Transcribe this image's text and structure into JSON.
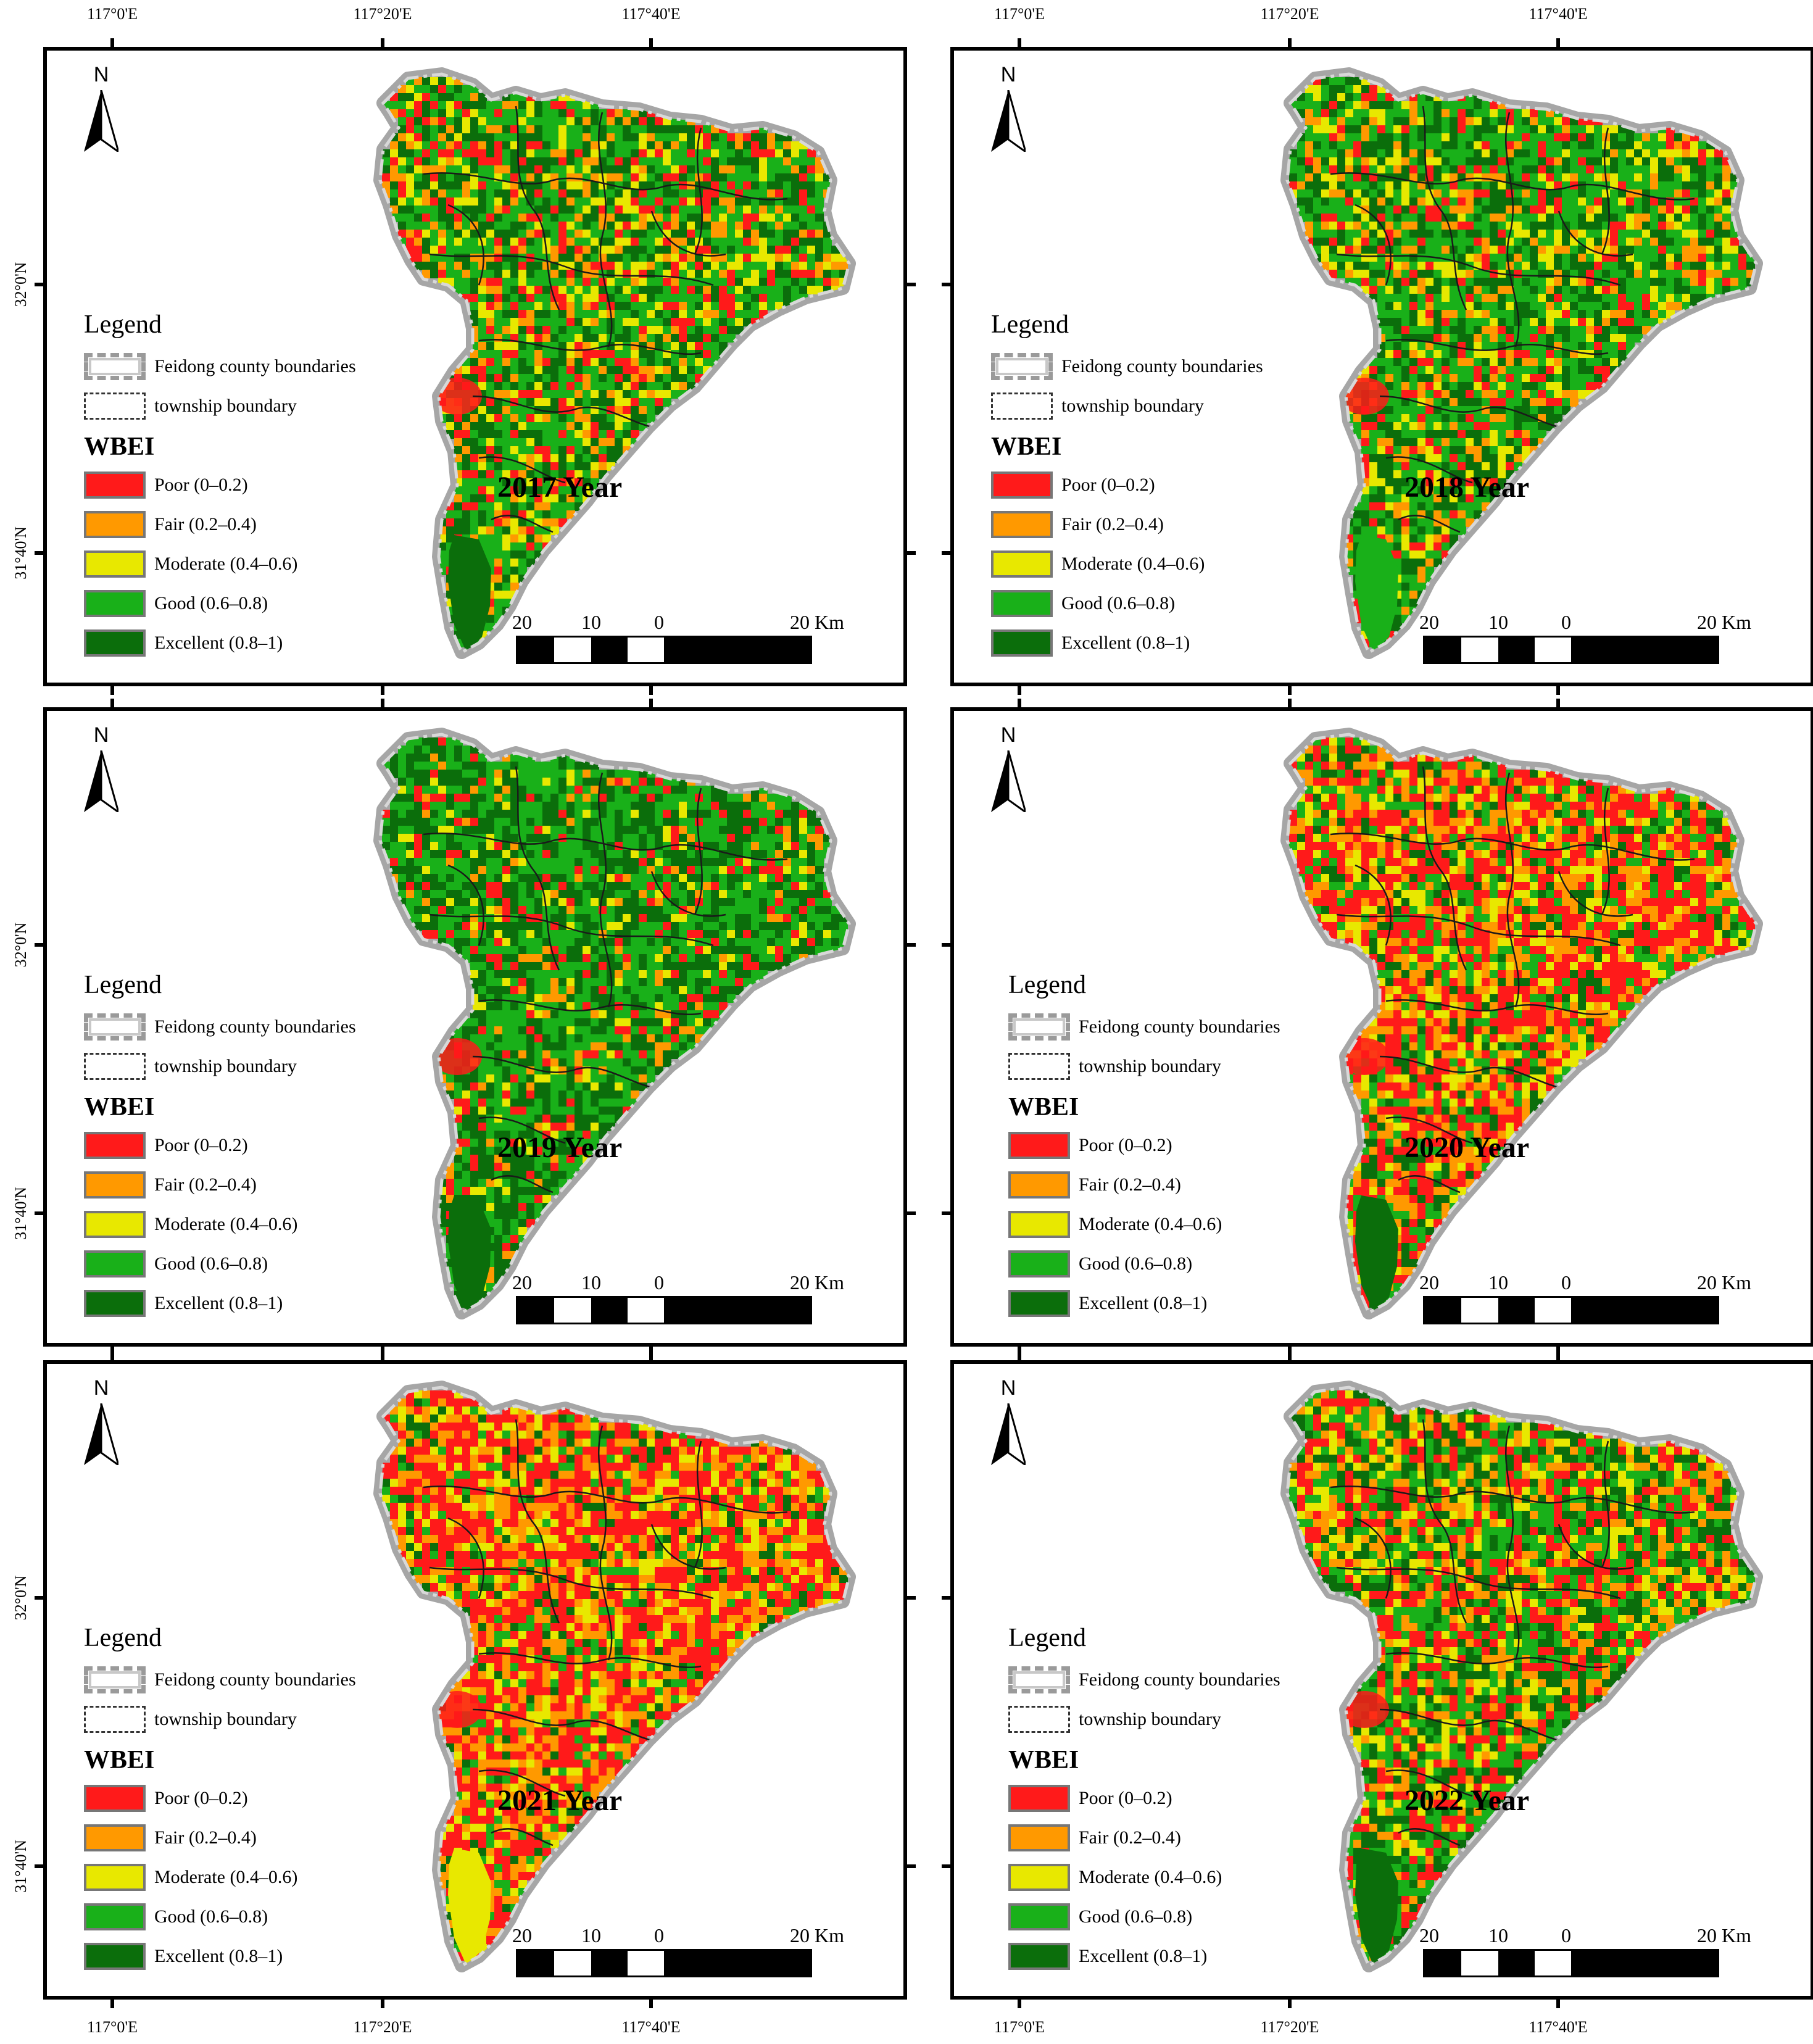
{
  "axes": {
    "lon_labels": [
      "117°0'E",
      "117°20'E",
      "117°40'E"
    ],
    "lat_labels": [
      "32°0'N",
      "31°40'N"
    ]
  },
  "north_label": "N",
  "legend": {
    "title": "Legend",
    "county_boundary": "Feidong county boundaries",
    "township_boundary": "township boundary",
    "wbei_title": "WBEI",
    "classes": [
      {
        "label": "Poor (0–0.2)",
        "color": "#ff1a1a"
      },
      {
        "label": "Fair (0.2–0.4)",
        "color": "#ff9900"
      },
      {
        "label": "Moderate (0.4–0.6)",
        "color": "#e8e800"
      },
      {
        "label": "Good (0.6–0.8)",
        "color": "#19b019"
      },
      {
        "label": "Excellent (0.8–1)",
        "color": "#0b6e0b"
      }
    ]
  },
  "scale_bar": {
    "labels": [
      "20",
      "10",
      "0",
      "20 Km"
    ]
  },
  "panels": [
    {
      "year": "2017 Year",
      "mix": [
        0.14,
        0.12,
        0.14,
        0.33,
        0.27
      ],
      "south_class": 4
    },
    {
      "year": "2018 Year",
      "mix": [
        0.13,
        0.12,
        0.13,
        0.35,
        0.27
      ],
      "south_class": 3
    },
    {
      "year": "2019 Year",
      "mix": [
        0.1,
        0.06,
        0.06,
        0.42,
        0.36
      ],
      "south_class": 4
    },
    {
      "year": "2020 Year",
      "mix": [
        0.38,
        0.22,
        0.14,
        0.16,
        0.1
      ],
      "south_class": 4
    },
    {
      "year": "2021 Year",
      "mix": [
        0.42,
        0.25,
        0.14,
        0.11,
        0.08
      ],
      "south_class": 2
    },
    {
      "year": "2022 Year",
      "mix": [
        0.22,
        0.16,
        0.12,
        0.27,
        0.23
      ],
      "south_class": 4
    }
  ]
}
